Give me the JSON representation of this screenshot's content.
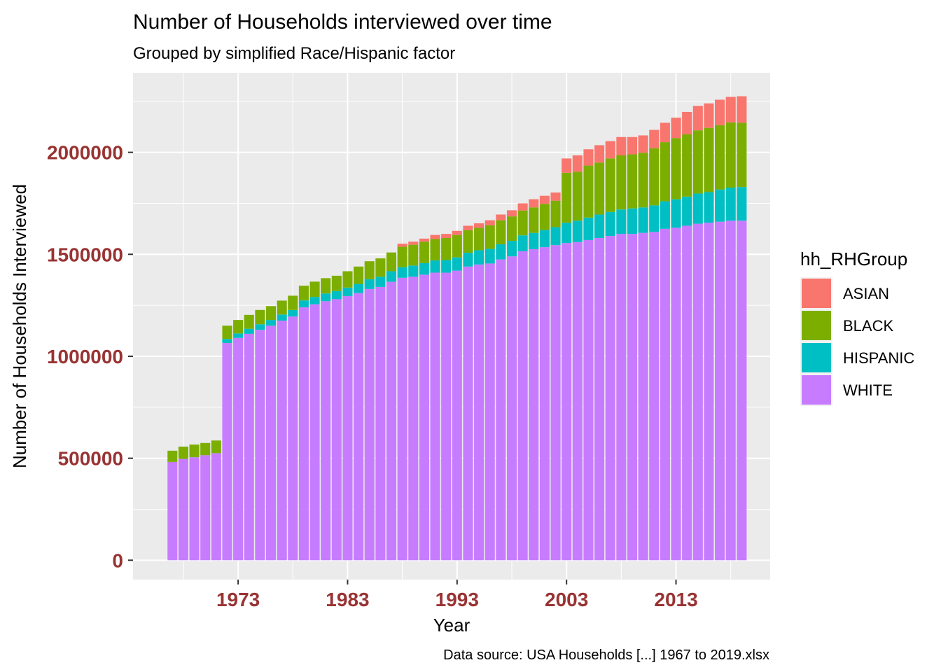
{
  "chart_data": {
    "type": "bar",
    "stacked": true,
    "title": "Number of Households interviewed over time",
    "subtitle": "Grouped by simplified Race/Hispanic factor",
    "xlabel": "Year",
    "ylabel": "Number of Households Interviewed",
    "caption": "Data source: USA Households [...] 1967 to 2019.xlsx",
    "legend_title": "hh_RHGroup",
    "legend_position": "right",
    "grid": true,
    "xlim": [
      1963.4,
      2021.6
    ],
    "ylim": [
      -95000,
      2390000
    ],
    "x_ticks": [
      1973,
      1983,
      1993,
      2003,
      2013
    ],
    "y_ticks": [
      0,
      500000,
      1000000,
      1500000,
      2000000
    ],
    "x": [
      1967,
      1968,
      1969,
      1970,
      1971,
      1972,
      1973,
      1974,
      1975,
      1976,
      1977,
      1978,
      1979,
      1980,
      1981,
      1982,
      1983,
      1984,
      1985,
      1986,
      1987,
      1988,
      1989,
      1990,
      1991,
      1992,
      1993,
      1994,
      1995,
      1996,
      1997,
      1998,
      1999,
      2000,
      2001,
      2002,
      2003,
      2004,
      2005,
      2006,
      2007,
      2008,
      2009,
      2010,
      2011,
      2012,
      2013,
      2014,
      2015,
      2016,
      2017,
      2018,
      2019
    ],
    "series": [
      {
        "name": "WHITE",
        "color": "#C77CFF",
        "values": [
          482000,
          497000,
          505000,
          515000,
          525000,
          1065000,
          1090000,
          1110000,
          1130000,
          1150000,
          1175000,
          1195000,
          1240000,
          1255000,
          1270000,
          1280000,
          1295000,
          1310000,
          1330000,
          1340000,
          1365000,
          1385000,
          1390000,
          1400000,
          1410000,
          1410000,
          1420000,
          1440000,
          1450000,
          1455000,
          1475000,
          1490000,
          1515000,
          1525000,
          1535000,
          1545000,
          1555000,
          1560000,
          1570000,
          1580000,
          1590000,
          1600000,
          1600000,
          1605000,
          1610000,
          1625000,
          1630000,
          1640000,
          1650000,
          1655000,
          1660000,
          1665000,
          1665000
        ]
      },
      {
        "name": "HISPANIC",
        "color": "#00BFC4",
        "values": [
          0,
          0,
          0,
          0,
          0,
          20000,
          22000,
          25000,
          27000,
          28000,
          30000,
          32000,
          34000,
          36000,
          38000,
          40000,
          42000,
          45000,
          48000,
          50000,
          52000,
          52000,
          55000,
          57000,
          60000,
          62000,
          65000,
          68000,
          70000,
          72000,
          74000,
          76000,
          78000,
          80000,
          84000,
          88000,
          100000,
          105000,
          110000,
          115000,
          118000,
          120000,
          125000,
          125000,
          130000,
          135000,
          140000,
          143000,
          148000,
          150000,
          158000,
          162000,
          165000
        ]
      },
      {
        "name": "BLACK",
        "color": "#7CAE00",
        "values": [
          55000,
          60000,
          62000,
          60000,
          62000,
          65000,
          66000,
          68000,
          70000,
          68000,
          68000,
          70000,
          72000,
          75000,
          75000,
          75000,
          80000,
          85000,
          88000,
          90000,
          92000,
          100000,
          102000,
          105000,
          105000,
          108000,
          110000,
          110000,
          110000,
          115000,
          118000,
          120000,
          122000,
          125000,
          128000,
          130000,
          245000,
          240000,
          255000,
          255000,
          262000,
          265000,
          265000,
          268000,
          280000,
          290000,
          300000,
          305000,
          310000,
          315000,
          315000,
          320000,
          315000
        ]
      },
      {
        "name": "ASIAN",
        "color": "#F8766D",
        "values": [
          0,
          0,
          0,
          0,
          0,
          0,
          0,
          0,
          0,
          0,
          0,
          0,
          0,
          0,
          0,
          0,
          0,
          0,
          0,
          0,
          0,
          15000,
          15000,
          15000,
          20000,
          20000,
          20000,
          22000,
          22000,
          25000,
          28000,
          30000,
          35000,
          40000,
          40000,
          40000,
          70000,
          80000,
          80000,
          85000,
          85000,
          90000,
          85000,
          85000,
          90000,
          95000,
          100000,
          110000,
          120000,
          120000,
          125000,
          125000,
          130000
        ]
      }
    ]
  }
}
